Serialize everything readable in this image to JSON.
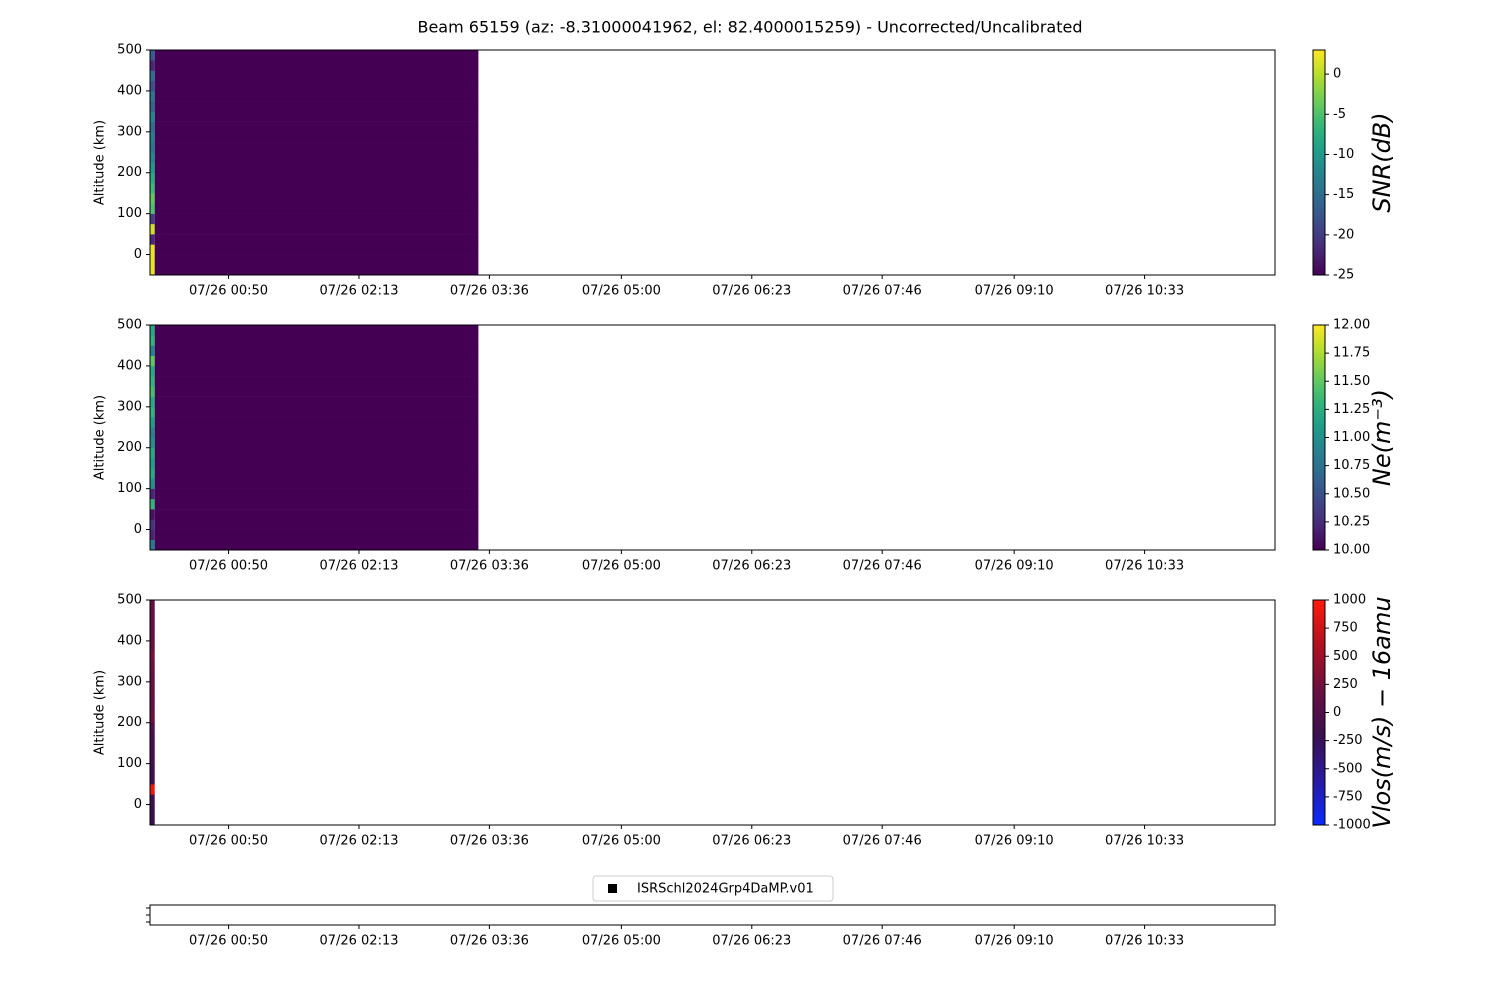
{
  "chart_data": [
    {
      "type": "heatmap",
      "title": "Beam 65159 (az: -8.31000041962, el: 82.4000015259) - Uncorrected/Uncalibrated",
      "ylabel": "Altitude (km)",
      "xlim": [
        "07/26 00:00",
        "07/26 11:56"
      ],
      "xticks": [
        "07/26 00:50",
        "07/26 02:13",
        "07/26 03:36",
        "07/26 05:00",
        "07/26 06:23",
        "07/26 07:46",
        "07/26 09:10",
        "07/26 10:33"
      ],
      "ylim": [
        -50,
        500
      ],
      "yticks": [
        0,
        100,
        200,
        300,
        400,
        500
      ],
      "x_edges": [
        "07/26 00:00",
        "07/26 00:03",
        "07/26 03:29"
      ],
      "y_edges": [
        -50,
        -25,
        0,
        25,
        50,
        75,
        100,
        125,
        150,
        175,
        200,
        225,
        250,
        275,
        300,
        325,
        350,
        375,
        400,
        425,
        450,
        475,
        500
      ],
      "values": [
        [
          2,
          2,
          2,
          -22,
          1,
          -20,
          -5,
          -4,
          -6,
          -8,
          -10,
          -12,
          -14,
          -13,
          -15,
          -12,
          -16,
          -14,
          -18,
          -15,
          -22,
          -17
        ],
        [
          -25,
          -25,
          -25,
          -25,
          -25,
          -25,
          -25,
          -25,
          -25,
          -25,
          -25,
          -25,
          -25,
          -25,
          -25,
          -25,
          -25,
          -25,
          -25,
          -25,
          -25,
          -25
        ]
      ],
      "colormap": "viridis",
      "clim": [
        -25,
        3
      ],
      "cticks": [
        0,
        -5,
        -10,
        -15,
        -20,
        -25
      ],
      "clabel": "SNR(dB)"
    },
    {
      "type": "heatmap",
      "ylabel": "Altitude (km)",
      "xlim": [
        "07/26 00:00",
        "07/26 11:56"
      ],
      "xticks": [
        "07/26 00:50",
        "07/26 02:13",
        "07/26 03:36",
        "07/26 05:00",
        "07/26 06:23",
        "07/26 07:46",
        "07/26 09:10",
        "07/26 10:33"
      ],
      "ylim": [
        -50,
        500
      ],
      "yticks": [
        0,
        100,
        200,
        300,
        400,
        500
      ],
      "x_edges": [
        "07/26 00:00",
        "07/26 00:03",
        "07/26 03:29"
      ],
      "y_edges": [
        -50,
        -25,
        0,
        25,
        50,
        75,
        100,
        125,
        150,
        175,
        200,
        225,
        250,
        275,
        300,
        325,
        350,
        375,
        400,
        425,
        450,
        475,
        500
      ],
      "values": [
        [
          10.8,
          10.2,
          10.3,
          10.1,
          11.3,
          10.2,
          11.0,
          11.2,
          11.1,
          11.2,
          11.0,
          10.9,
          11.1,
          11.3,
          11.2,
          11.4,
          11.3,
          11.2,
          11.5,
          10.9,
          11.3,
          11.2
        ],
        [
          10,
          10,
          10,
          10,
          10,
          10,
          10,
          10,
          10,
          10,
          10,
          10,
          10,
          10,
          10,
          10,
          10,
          10,
          10,
          10,
          10,
          10
        ]
      ],
      "colormap": "viridis",
      "clim": [
        10,
        12
      ],
      "cticks": [
        {
          "value": 10,
          "label": "10.00"
        },
        {
          "value": 10.25,
          "label": "10.25"
        },
        {
          "value": 10.5,
          "label": "10.50"
        },
        {
          "value": 10.75,
          "label": "10.75"
        },
        {
          "value": 11,
          "label": "11.00"
        },
        {
          "value": 11.25,
          "label": "11.25"
        },
        {
          "value": 11.5,
          "label": "11.50"
        },
        {
          "value": 11.75,
          "label": "11.75"
        },
        {
          "value": 12,
          "label": "12.00"
        }
      ],
      "clabel": "Ne(m⁻³)"
    },
    {
      "type": "heatmap",
      "ylabel": "Altitude (km)",
      "xlim": [
        "07/26 00:00",
        "07/26 11:56"
      ],
      "xticks": [
        "07/26 00:50",
        "07/26 02:13",
        "07/26 03:36",
        "07/26 05:00",
        "07/26 06:23",
        "07/26 07:46",
        "07/26 09:10",
        "07/26 10:33"
      ],
      "ylim": [
        -50,
        500
      ],
      "yticks": [
        0,
        100,
        200,
        300,
        400,
        500
      ],
      "x_edges": [
        "07/26 00:00",
        "07/26 00:03"
      ],
      "y_edges": [
        -50,
        -25,
        0,
        25,
        50,
        75,
        100,
        125,
        150,
        175,
        200,
        225,
        250,
        275,
        300,
        325,
        350,
        375,
        400,
        425,
        450,
        475,
        500
      ],
      "values": [
        [
          -200,
          -200,
          -150,
          900,
          -150,
          -150,
          -100,
          -100,
          -100,
          -50,
          200,
          150,
          150,
          200,
          150,
          200,
          250,
          200,
          150,
          150,
          100,
          150
        ]
      ],
      "colormap": "blue-dark-red",
      "clim": [
        -1000,
        1000
      ],
      "cticks": [
        1000,
        750,
        500,
        250,
        0,
        -250,
        -500,
        -750,
        -1000
      ],
      "clabel": "Vlos(m/s) − 16amu"
    },
    {
      "type": "legend",
      "xlim": [
        "07/26 00:00",
        "07/26 11:56"
      ],
      "xticks": [
        "07/26 00:50",
        "07/26 02:13",
        "07/26 03:36",
        "07/26 05:00",
        "07/26 06:23",
        "07/26 07:46",
        "07/26 09:10",
        "07/26 10:33"
      ],
      "series": [
        {
          "name": "ISRSchl2024Grp4DaMP.v01",
          "color": "#000000"
        }
      ]
    }
  ]
}
